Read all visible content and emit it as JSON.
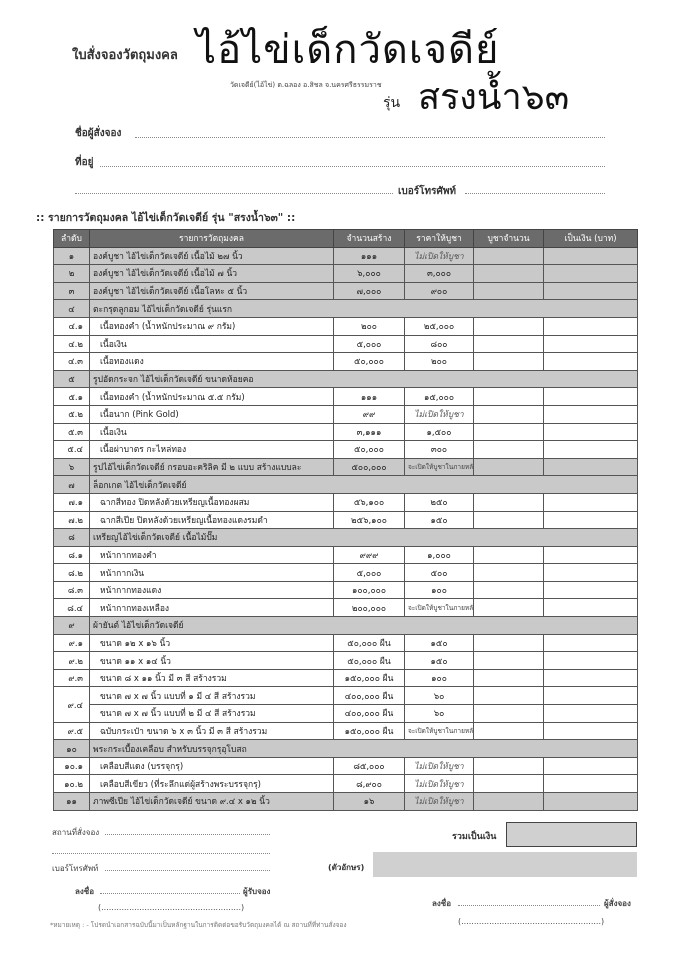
{
  "header": {
    "form_title": "ใบสั่งจองวัตถุมงคล",
    "brand": "ไอ้ไข่เด็กวัดเจดีย์",
    "temple": "วัดเจดีย์(ไอ้ไข่) ต.ฉลอง อ.สิชล จ.นครศรีธรรมราช",
    "series_prefix": "รุ่น",
    "series_name": "สรงน้ำ๖๓"
  },
  "customer": {
    "name_label": "ชื่อผู้สั่งจอง",
    "address_label": "ที่อยู่",
    "phone_label": "เบอร์โทรศัพท์"
  },
  "list_title": ":: รายการวัตถุมงคล ไอ้ไข่เด็กวัดเจดีย์ รุ่น \"สรงน้ำ๖๓\" ::",
  "table": {
    "headers": [
      "ลำดับ",
      "รายการวัตถุมงคล",
      "จำนวนสร้าง",
      "ราคาให้บูชา",
      "บูชาจำนวน",
      "เป็นเงิน (บาท)"
    ],
    "rows": [
      {
        "type": "main",
        "num": "๑",
        "name": "องค์บูชา ไอ้ไข่เด็กวัดเจดีย์ เนื้อไม้ ๒๗ นิ้ว",
        "qty": "๑๑๑",
        "price": "ไม่เปิดให้บูชา",
        "price_style": "italic"
      },
      {
        "type": "main",
        "num": "๒",
        "name": "องค์บูชา ไอ้ไข่เด็กวัดเจดีย์ เนื้อไม้ ๗ นิ้ว",
        "qty": "๖,๐๐๐",
        "price": "๓,๐๐๐"
      },
      {
        "type": "main",
        "num": "๓",
        "name": "องค์บูชา ไอ้ไข่เด็กวัดเจดีย์ เนื้อโลหะ ๕ นิ้ว",
        "qty": "๗,๐๐๐",
        "price": "๙๐๐"
      },
      {
        "type": "section",
        "num": "๔",
        "name": "ตะกรุดลูกอม ไอ้ไข่เด็กวัดเจดีย์ รุ่นแรก"
      },
      {
        "type": "sub",
        "num": "๔.๑",
        "name": "เนื้อทองคำ (น้ำหนักประมาณ ๙ กรัม)",
        "qty": "๒๐๐",
        "price": "๒๕,๐๐๐"
      },
      {
        "type": "sub",
        "num": "๔.๒",
        "name": "เนื้อเงิน",
        "qty": "๕,๐๐๐",
        "price": "๘๐๐"
      },
      {
        "type": "sub",
        "num": "๔.๓",
        "name": "เนื้อทองแดง",
        "qty": "๕๐,๐๐๐",
        "price": "๒๐๐"
      },
      {
        "type": "section",
        "num": "๕",
        "name": "รูปอัดกระจก ไอ้ไข่เด็กวัดเจดีย์ ขนาดห้อยคอ"
      },
      {
        "type": "sub",
        "num": "๕.๑",
        "name": "เนื้อทองคำ (น้ำหนักประมาณ ๕.๕ กรัม)",
        "qty": "๑๑๑",
        "price": "๑๕,๐๐๐"
      },
      {
        "type": "sub",
        "num": "๕.๒",
        "name": "เนื้อนาก (Pink Gold)",
        "qty": "๙๙",
        "price": "ไม่เปิดให้บูชา",
        "price_style": "italic"
      },
      {
        "type": "sub",
        "num": "๕.๓",
        "name": "เนื้อเงิน",
        "qty": "๓,๑๑๑",
        "price": "๑,๕๐๐"
      },
      {
        "type": "sub",
        "num": "๕.๔",
        "name": "เนื้อผ่าบาตร กะไหล่ทอง",
        "qty": "๕๐,๐๐๐",
        "price": "๓๐๐"
      },
      {
        "type": "main",
        "num": "๖",
        "name": "รูปไอ้ไข่เด็กวัดเจดีย์ กรอบอะคริลิค มี ๒ แบบ สร้างแบบละ",
        "qty": "๕๐๐,๐๐๐",
        "price": "จะเปิดให้บูชาในภายหลัง",
        "price_style": "tiny"
      },
      {
        "type": "section",
        "num": "๗",
        "name": "ล็อกเกต ไอ้ไข่เด็กวัดเจดีย์"
      },
      {
        "type": "sub",
        "num": "๗.๑",
        "name": "ฉากสีทอง ปิดหลังด้วยเหรียญเนื้อทองผสม",
        "qty": "๕๖,๑๐๐",
        "price": "๒๕๐"
      },
      {
        "type": "sub",
        "num": "๗.๒",
        "name": "ฉากสีเปีย ปิดหลังด้วยเหรียญเนื้อทองแดงรมดำ",
        "qty": "๒๕๖,๑๐๐",
        "price": "๑๕๐"
      },
      {
        "type": "section",
        "num": "๘",
        "name": "เหรียญไอ้ไข่เด็กวัดเจดีย์ เนื้อไม้ปั๊ม"
      },
      {
        "type": "sub",
        "num": "๘.๑",
        "name": "หน้ากากทองคำ",
        "qty": "๙๙๙",
        "price": "๑,๐๐๐"
      },
      {
        "type": "sub",
        "num": "๘.๒",
        "name": "หน้ากากเงิน",
        "qty": "๕,๐๐๐",
        "price": "๕๐๐"
      },
      {
        "type": "sub",
        "num": "๘.๓",
        "name": "หน้ากากทองแดง",
        "qty": "๑๐๐,๐๐๐",
        "price": "๑๐๐"
      },
      {
        "type": "sub",
        "num": "๘.๔",
        "name": "หน้ากากทองเหลือง",
        "qty": "๒๐๐,๐๐๐",
        "price": "จะเปิดให้บูชาในภายหลัง",
        "price_style": "tiny"
      },
      {
        "type": "section",
        "num": "๙",
        "name": "ผ้ายันต์ ไอ้ไข่เด็กวัดเจดีย์"
      },
      {
        "type": "sub",
        "num": "๙.๑",
        "name": "ขนาด ๑๒ x ๑๖ นิ้ว",
        "qty": "๕๐,๐๐๐ ผืน",
        "price": "๑๕๐"
      },
      {
        "type": "sub",
        "num": "๙.๒",
        "name": "ขนาด ๑๑ x ๑๔ นิ้ว",
        "qty": "๕๐,๐๐๐ ผืน",
        "price": "๑๕๐"
      },
      {
        "type": "sub",
        "num": "๙.๓",
        "name": "ขนาด ๘ x ๑๑ นิ้ว มี ๓ สี สร้างรวม",
        "qty": "๑๕๐,๐๐๐ ผืน",
        "price": "๑๐๐"
      },
      {
        "type": "sub",
        "num": "๙.๔",
        "rowspan": 2,
        "name": "ขนาด ๗ x ๗ นิ้ว แบบที่ ๑ มี ๔ สี สร้างรวม",
        "qty": "๔๐๐,๐๐๐ ผืน",
        "price": "๖๐"
      },
      {
        "type": "sub",
        "skipnum": true,
        "name": "ขนาด ๗ x ๗ นิ้ว แบบที่ ๒ มี ๔ สี สร้างรวม",
        "qty": "๔๐๐,๐๐๐ ผืน",
        "price": "๖๐"
      },
      {
        "type": "sub",
        "num": "๙.๕",
        "name": "ฉบับกระเป๋า ขนาด ๖ x ๓ นิ้ว มี ๓ สี สร้างรวม",
        "qty": "๑๕๐,๐๐๐ ผืน",
        "price": "จะเปิดให้บูชาในภายหลัง",
        "price_style": "tiny"
      },
      {
        "type": "section",
        "num": "๑๐",
        "name": "พระกระเบื้องเคลือบ สำหรับบรรจุกรุอุโบสถ"
      },
      {
        "type": "sub",
        "num": "๑๐.๑",
        "name": "เคลือบสีแดง (บรรจุกรุ)",
        "qty": "๘๕,๐๐๐",
        "price": "ไม่เปิดให้บูชา",
        "price_style": "italic"
      },
      {
        "type": "sub",
        "num": "๑๐.๒",
        "name": "เคลือบสีเขียว (ที่ระลึกแด่ผู้สร้างพระบรรจุกรุ)",
        "qty": "๘,๙๐๐",
        "price": "ไม่เปิดให้บูชา",
        "price_style": "italic"
      },
      {
        "type": "main",
        "num": "๑๑",
        "name": "ภาพซีเปีย ไอ้ไข่เด็กวัดเจดีย์ ขนาด ๙.๔ x ๑๒ นิ้ว",
        "qty": "๑๖",
        "price": "ไม่เปิดให้บูชา",
        "price_style": "italic"
      }
    ]
  },
  "footer": {
    "place_label": "สถานที่สั่งจอง",
    "phone_label": "เบอร์โทรศัพท์",
    "total_label": "รวมเป็นเงิน",
    "words_label": "(ตัวอักษร)",
    "sign_label": "ลงชื่อ",
    "receiver_label": "ผู้รับจอง",
    "orderer_label": "ผู้สั่งจอง",
    "paren_blank": "(.......................................................)",
    "note": "*หมายเหตุ : - โปรดนำเอกสารฉบับนี้มาเป็นหลักฐานในการติดต่อขอรับวัตถุมงคลได้ ณ สถานที่ที่ท่านสั่งจอง"
  },
  "colors": {
    "header_bg": "#6b6b6b",
    "grey_row": "#c9c9c9",
    "box": "#d0d0d0"
  }
}
